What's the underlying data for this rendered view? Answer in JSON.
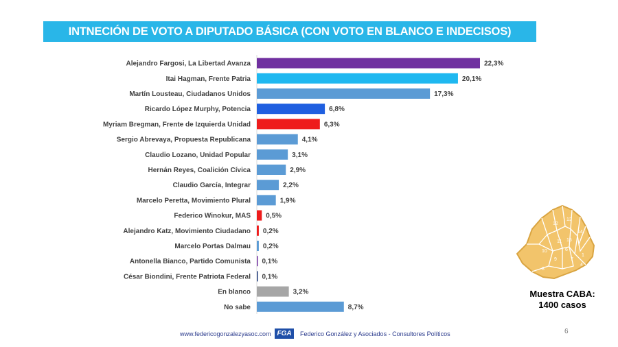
{
  "title": "INTNECIÓN DE VOTO A DIPUTADO BÁSICA (CON VOTO EN BLANCO E INDECISOS)",
  "chart_data": {
    "type": "bar",
    "orientation": "horizontal",
    "title": "INTNECIÓN DE VOTO A DIPUTADO BÁSICA (CON VOTO EN BLANCO E INDECISOS)",
    "xlim": [
      0,
      25
    ],
    "grid": false,
    "categories": [
      "Alejandro Fargosi, La Libertad Avanza",
      "Itai Hagman, Frente Patria",
      "Martín Lousteau, Ciudadanos Unidos",
      "Ricardo López Murphy, Potencia",
      "Myriam Bregman, Frente de Izquierda Unidad",
      "Sergio Abrevaya, Propuesta Republicana",
      "Claudio Lozano, Unidad Popular",
      "Hernán Reyes, Coalición Cívica",
      "Claudio García, Integrar",
      "Marcelo Peretta, Movimiento Plural",
      "Federico Winokur, MAS",
      "Alejandro Katz, Movimiento Ciudadano",
      "Marcelo Portas Dalmau",
      "Antonella Bianco, Partido Comunista",
      "César Biondini, Frente Patriota Federal",
      "En blanco",
      "No sabe"
    ],
    "values": [
      22.3,
      20.1,
      17.3,
      6.8,
      6.3,
      4.1,
      3.1,
      2.9,
      2.2,
      1.9,
      0.5,
      0.2,
      0.2,
      0.1,
      0.1,
      3.2,
      8.7
    ],
    "value_labels": [
      "22,3%",
      "20,1%",
      "17,3%",
      "6,8%",
      "6,3%",
      "4,1%",
      "3,1%",
      "2,9%",
      "2,2%",
      "1,9%",
      "0,5%",
      "0,2%",
      "0,2%",
      "0,1%",
      "0,1%",
      "3,2%",
      "8,7%"
    ],
    "colors": [
      "#7030a0",
      "#1fb8f0",
      "#5b9bd5",
      "#1f5fe0",
      "#ee1c1c",
      "#5b9bd5",
      "#5b9bd5",
      "#5b9bd5",
      "#5b9bd5",
      "#5b9bd5",
      "#ee1c1c",
      "#ee1c1c",
      "#5b9bd5",
      "#7030a0",
      "#1f3a7a",
      "#a6a6a6",
      "#5b9bd5"
    ]
  },
  "map_icon": "caba-comunas-map",
  "sample": {
    "line1": "Muestra CABA:",
    "line2": "1400 casos"
  },
  "footer": {
    "url": "www.federicogonzalezyasoc.com",
    "logo_text": "FGA",
    "company": "Federico González y Asociados - Consultores Políticos"
  },
  "page_number": "6"
}
